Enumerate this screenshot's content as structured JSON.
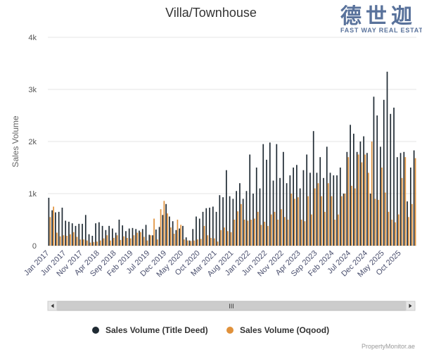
{
  "brand": {
    "name_cn": "德世迦",
    "name_en": "FAST WAY REAL ESTATE"
  },
  "credit": "PropertyMonitor.ae",
  "navigator": {
    "grip": "III"
  },
  "colors": {
    "title_deed": "#1f2a33",
    "oqood": "#e0913b",
    "grid": "#e6e6e6",
    "brand": "#3d5a8a"
  },
  "chart_data": {
    "type": "bar",
    "title": "Villa/Townhouse",
    "xlabel": "",
    "ylabel": "Sales Volume",
    "ylim": [
      0,
      4000
    ],
    "yticks": [
      {
        "value": 0,
        "label": "0"
      },
      {
        "value": 1000,
        "label": "1k"
      },
      {
        "value": 2000,
        "label": "2k"
      },
      {
        "value": 3000,
        "label": "3k"
      },
      {
        "value": 4000,
        "label": "4k"
      }
    ],
    "grid": true,
    "legend_position": "bottom",
    "start_month": "2017-01",
    "xtick_labels": [
      {
        "index": 0,
        "label": "Jan 2017"
      },
      {
        "index": 5,
        "label": "Jun 2017"
      },
      {
        "index": 10,
        "label": "Nov 2017"
      },
      {
        "index": 15,
        "label": "Apr 2018"
      },
      {
        "index": 20,
        "label": "Sep 2018"
      },
      {
        "index": 25,
        "label": "Feb 2019"
      },
      {
        "index": 30,
        "label": "Jul 2019"
      },
      {
        "index": 35,
        "label": "Dec 2019"
      },
      {
        "index": 40,
        "label": "May 2020"
      },
      {
        "index": 45,
        "label": "Oct 2020"
      },
      {
        "index": 50,
        "label": "Mar 2021"
      },
      {
        "index": 55,
        "label": "Aug 2021"
      },
      {
        "index": 60,
        "label": "Jan 2022"
      },
      {
        "index": 65,
        "label": "Jun 2022"
      },
      {
        "index": 70,
        "label": "Nov 2022"
      },
      {
        "index": 75,
        "label": "Apr 2023"
      },
      {
        "index": 80,
        "label": "Sep 2023"
      },
      {
        "index": 85,
        "label": "Feb 2024"
      },
      {
        "index": 90,
        "label": "Jul 2024"
      },
      {
        "index": 95,
        "label": "Dec 2024"
      },
      {
        "index": 100,
        "label": "May 2025"
      },
      {
        "index": 105,
        "label": "Oct 2025"
      }
    ],
    "series": [
      {
        "name": "Sales Volume (Title Deed)",
        "color": "#1f2a33",
        "values": [
          920,
          680,
          640,
          650,
          730,
          480,
          460,
          430,
          380,
          420,
          420,
          590,
          220,
          190,
          430,
          450,
          380,
          300,
          380,
          330,
          250,
          500,
          390,
          280,
          330,
          340,
          320,
          290,
          320,
          400,
          210,
          200,
          310,
          360,
          590,
          800,
          560,
          470,
          300,
          330,
          380,
          160,
          100,
          320,
          560,
          520,
          650,
          720,
          730,
          750,
          650,
          970,
          930,
          1450,
          950,
          900,
          1050,
          1200,
          900,
          1050,
          1750,
          1000,
          1500,
          1100,
          1950,
          1650,
          1980,
          1250,
          1950,
          1300,
          1800,
          1200,
          1350,
          1500,
          1550,
          1100,
          1450,
          1750,
          1400,
          2200,
          1400,
          1700,
          1300,
          1900,
          1400,
          1350,
          1350,
          1500,
          1000,
          1800,
          2320,
          2150,
          1800,
          2000,
          2100,
          1780,
          1000,
          2860,
          2500,
          1900,
          2800,
          3340,
          2530,
          2650,
          1700,
          1780,
          1800,
          850,
          1500,
          1830
        ]
      },
      {
        "name": "Sales Volume (Oqood)",
        "color": "#e0913b",
        "values": [
          550,
          750,
          250,
          180,
          200,
          190,
          220,
          260,
          170,
          120,
          120,
          100,
          60,
          70,
          80,
          100,
          140,
          200,
          100,
          150,
          200,
          110,
          180,
          150,
          140,
          200,
          250,
          260,
          170,
          100,
          200,
          520,
          120,
          700,
          860,
          620,
          350,
          230,
          500,
          400,
          120,
          100,
          90,
          100,
          120,
          130,
          380,
          200,
          150,
          140,
          80,
          300,
          350,
          280,
          260,
          500,
          660,
          800,
          500,
          480,
          500,
          520,
          650,
          400,
          460,
          380,
          600,
          650,
          500,
          700,
          550,
          500,
          1000,
          900,
          930,
          500,
          470,
          950,
          600,
          1100,
          1200,
          950,
          650,
          1200,
          950,
          500,
          600,
          950,
          1000,
          1700,
          1150,
          1100,
          1750,
          1600,
          1750,
          1400,
          2000,
          900,
          880,
          1500,
          1020,
          650,
          500,
          450,
          600,
          1300,
          1700,
          550,
          800,
          1680
        ]
      }
    ]
  }
}
